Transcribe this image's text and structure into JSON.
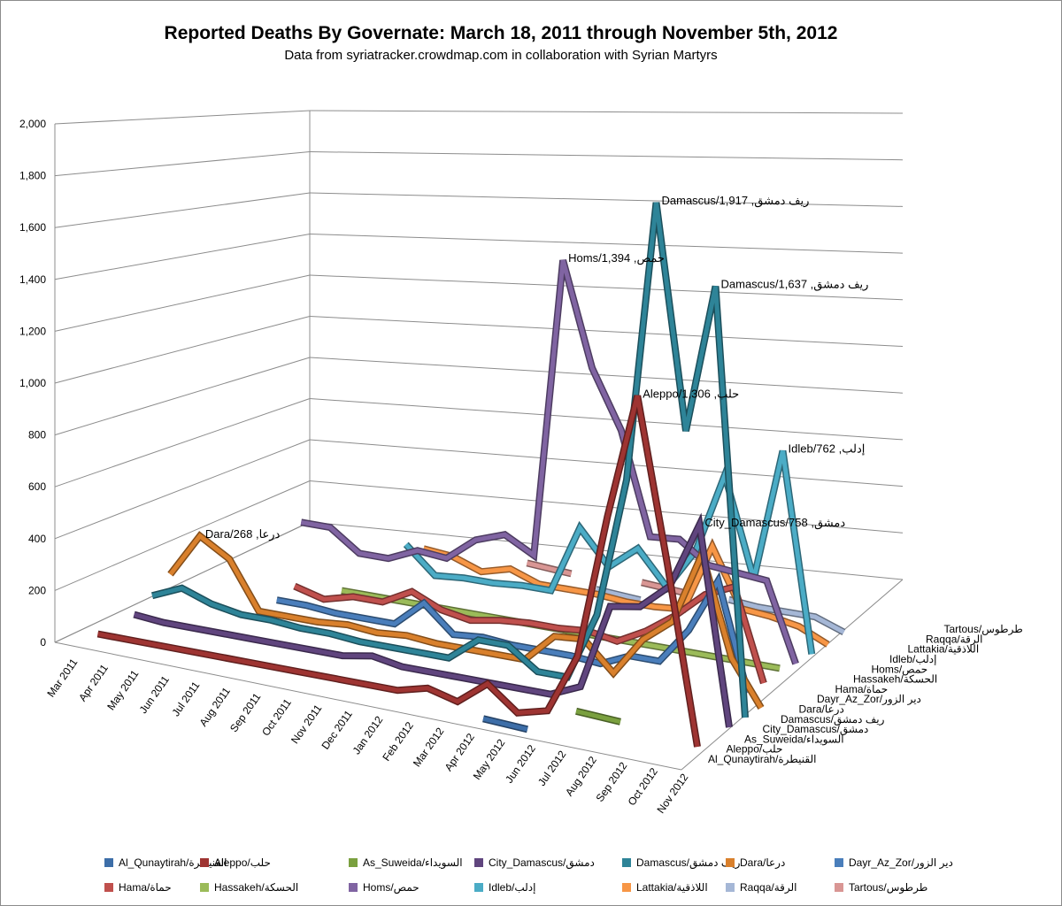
{
  "chart_data": {
    "type": "line",
    "title": "Reported Deaths By Governate: March 18, 2011 through November 5th, 2012",
    "subtitle": "Data from syriatracker.crowdmap.com  in collaboration with Syrian Martyrs",
    "xlabel": "",
    "ylabel": "",
    "ylim": [
      0,
      2000
    ],
    "yticks": [
      "0",
      "200",
      "400",
      "600",
      "800",
      "1,000",
      "1,200",
      "1,400",
      "1,600",
      "1,800",
      "2,000"
    ],
    "yticks_values": [
      0,
      200,
      400,
      600,
      800,
      1000,
      1200,
      1400,
      1600,
      1800,
      2000
    ],
    "categories": [
      "Mar 2011",
      "Apr 2011",
      "May 2011",
      "Jun 2011",
      "Jul 2011",
      "Aug 2011",
      "Sep 2011",
      "Oct 2011",
      "Nov 2011",
      "Dec 2011",
      "Jan 2012",
      "Feb 2012",
      "Mar 2012",
      "Apr 2012",
      "May 2012",
      "Jun 2012",
      "Jul 2012",
      "Aug 2012",
      "Sep 2012",
      "Oct 2012",
      "Nov 2012"
    ],
    "depth_labels": [
      "Al_Qunaytirah/القنيطرة",
      "Aleppo/حلب",
      "As_Suweida/السويداء",
      "City_Damascus/دمشق",
      "Damascus/ريف دمشق",
      "Dara/درعا",
      "Dayr_Az_Zor/دير الزور",
      "Hama/حماة",
      "Hassakeh/الحسكة",
      "Homs/حمص",
      "Idleb/إدلب",
      "Lattakia/اللاذقية",
      "Raqqa/الرقة",
      "Tartous/طرطوس"
    ],
    "grid": true,
    "legend_position": "bottom",
    "series": [
      {
        "name": "Al_Qunaytirah/القنيطرة",
        "color": "#3d6ea8",
        "values": [
          null,
          null,
          null,
          null,
          null,
          null,
          null,
          null,
          null,
          null,
          null,
          null,
          null,
          null,
          0,
          null,
          null,
          null,
          null,
          null,
          null
        ]
      },
      {
        "name": "Aleppo/حلب",
        "color": "#9e3432",
        "values": [
          0,
          0,
          0,
          0,
          0,
          0,
          0,
          0,
          0,
          0,
          0,
          30,
          0,
          90,
          0,
          30,
          260,
          820,
          1306,
          680,
          0
        ]
      },
      {
        "name": "As_Suweida/السويداء",
        "color": "#7aa03f",
        "values": [
          null,
          null,
          null,
          null,
          null,
          null,
          null,
          null,
          null,
          null,
          null,
          null,
          null,
          null,
          null,
          null,
          0,
          null,
          null,
          null,
          null
        ]
      },
      {
        "name": "City_Damascus/دمشق",
        "color": "#60457e",
        "values": [
          10,
          0,
          0,
          0,
          0,
          0,
          0,
          0,
          20,
          0,
          0,
          0,
          0,
          0,
          0,
          50,
          380,
          400,
          500,
          758,
          0
        ]
      },
      {
        "name": "Damascus/ريف دمشق",
        "color": "#2e8498",
        "values": [
          50,
          100,
          60,
          40,
          40,
          30,
          30,
          20,
          20,
          20,
          20,
          110,
          110,
          30,
          30,
          290,
          830,
          1917,
          1060,
          1637,
          0
        ]
      },
      {
        "name": "Dara/درعا",
        "color": "#d9802c",
        "values": [
          100,
          268,
          200,
          20,
          20,
          20,
          30,
          20,
          30,
          20,
          20,
          20,
          20,
          130,
          140,
          30,
          180,
          270,
          550,
          170,
          0
        ]
      },
      {
        "name": "Dayr_Az_Zor/دير الزور",
        "color": "#4a7ebb",
        "values": [
          null,
          null,
          null,
          30,
          30,
          20,
          20,
          20,
          120,
          20,
          30,
          20,
          20,
          20,
          10,
          60,
          60,
          200,
          410,
          0,
          null
        ]
      },
      {
        "name": "Hama/حماة",
        "color": "#c0504d",
        "values": [
          null,
          null,
          null,
          50,
          20,
          50,
          50,
          110,
          60,
          40,
          60,
          70,
          70,
          80,
          60,
          120,
          200,
          300,
          350,
          0,
          null
        ]
      },
      {
        "name": "Hassakeh/الحسكة",
        "color": "#9bbb59",
        "values": [
          null,
          null,
          null,
          null,
          20,
          20,
          20,
          20,
          20,
          20,
          20,
          20,
          20,
          20,
          20,
          20,
          20,
          20,
          20,
          20,
          null
        ]
      },
      {
        "name": "Homs/حمص",
        "color": "#8064a2",
        "values": [
          null,
          null,
          210,
          210,
          130,
          130,
          180,
          170,
          260,
          300,
          240,
          1394,
          1000,
          780,
          390,
          400,
          320,
          310,
          300,
          0,
          null
        ]
      },
      {
        "name": "Idleb/إدلب",
        "color": "#4bacc6",
        "values": [
          null,
          null,
          null,
          null,
          null,
          150,
          50,
          60,
          60,
          70,
          70,
          330,
          200,
          290,
          160,
          320,
          630,
          250,
          762,
          0,
          null
        ]
      },
      {
        "name": "Lattakia/اللاذقية",
        "color": "#f79646",
        "values": [
          null,
          null,
          null,
          null,
          null,
          100,
          90,
          50,
          80,
          40,
          40,
          40,
          30,
          30,
          40,
          300,
          80,
          70,
          50,
          0,
          null
        ]
      },
      {
        "name": "Raqqa/الرقة",
        "color": "#a5b7d6",
        "values": [
          null,
          null,
          null,
          null,
          null,
          null,
          null,
          null,
          null,
          null,
          null,
          10,
          null,
          null,
          null,
          60,
          50,
          50,
          50,
          10,
          null
        ]
      },
      {
        "name": "Tartous/طرطوس",
        "color": "#d99694",
        "values": [
          null,
          null,
          null,
          null,
          null,
          null,
          null,
          null,
          20,
          null,
          null,
          null,
          20,
          null,
          null,
          null,
          null,
          null,
          null,
          null,
          null
        ]
      }
    ],
    "annotations": [
      {
        "series": "Damascus/ريف دمشق",
        "category": "Aug 2012",
        "text": "Damascus/1,917 ,ريف دمشق"
      },
      {
        "series": "Damascus/ريف دمشق",
        "category": "Oct 2012",
        "text": "Damascus/1,637 ,ريف دمشق"
      },
      {
        "series": "Homs/حمص",
        "category": "Feb 2012",
        "text": "Homs/1,394 ,حمص"
      },
      {
        "series": "Aleppo/حلب",
        "category": "Sep 2012",
        "text": "Aleppo/1,306 ,حلب"
      },
      {
        "series": "Idleb/إدلب",
        "category": "Sep 2012",
        "text": "Idleb/762 ,إدلب"
      },
      {
        "series": "City_Damascus/دمشق",
        "category": "Oct 2012",
        "text": "City_Damascus/758 ,دمشق"
      },
      {
        "series": "Dara/درعا",
        "category": "Apr 2011",
        "text": "Dara/268 ,درعا"
      }
    ]
  }
}
